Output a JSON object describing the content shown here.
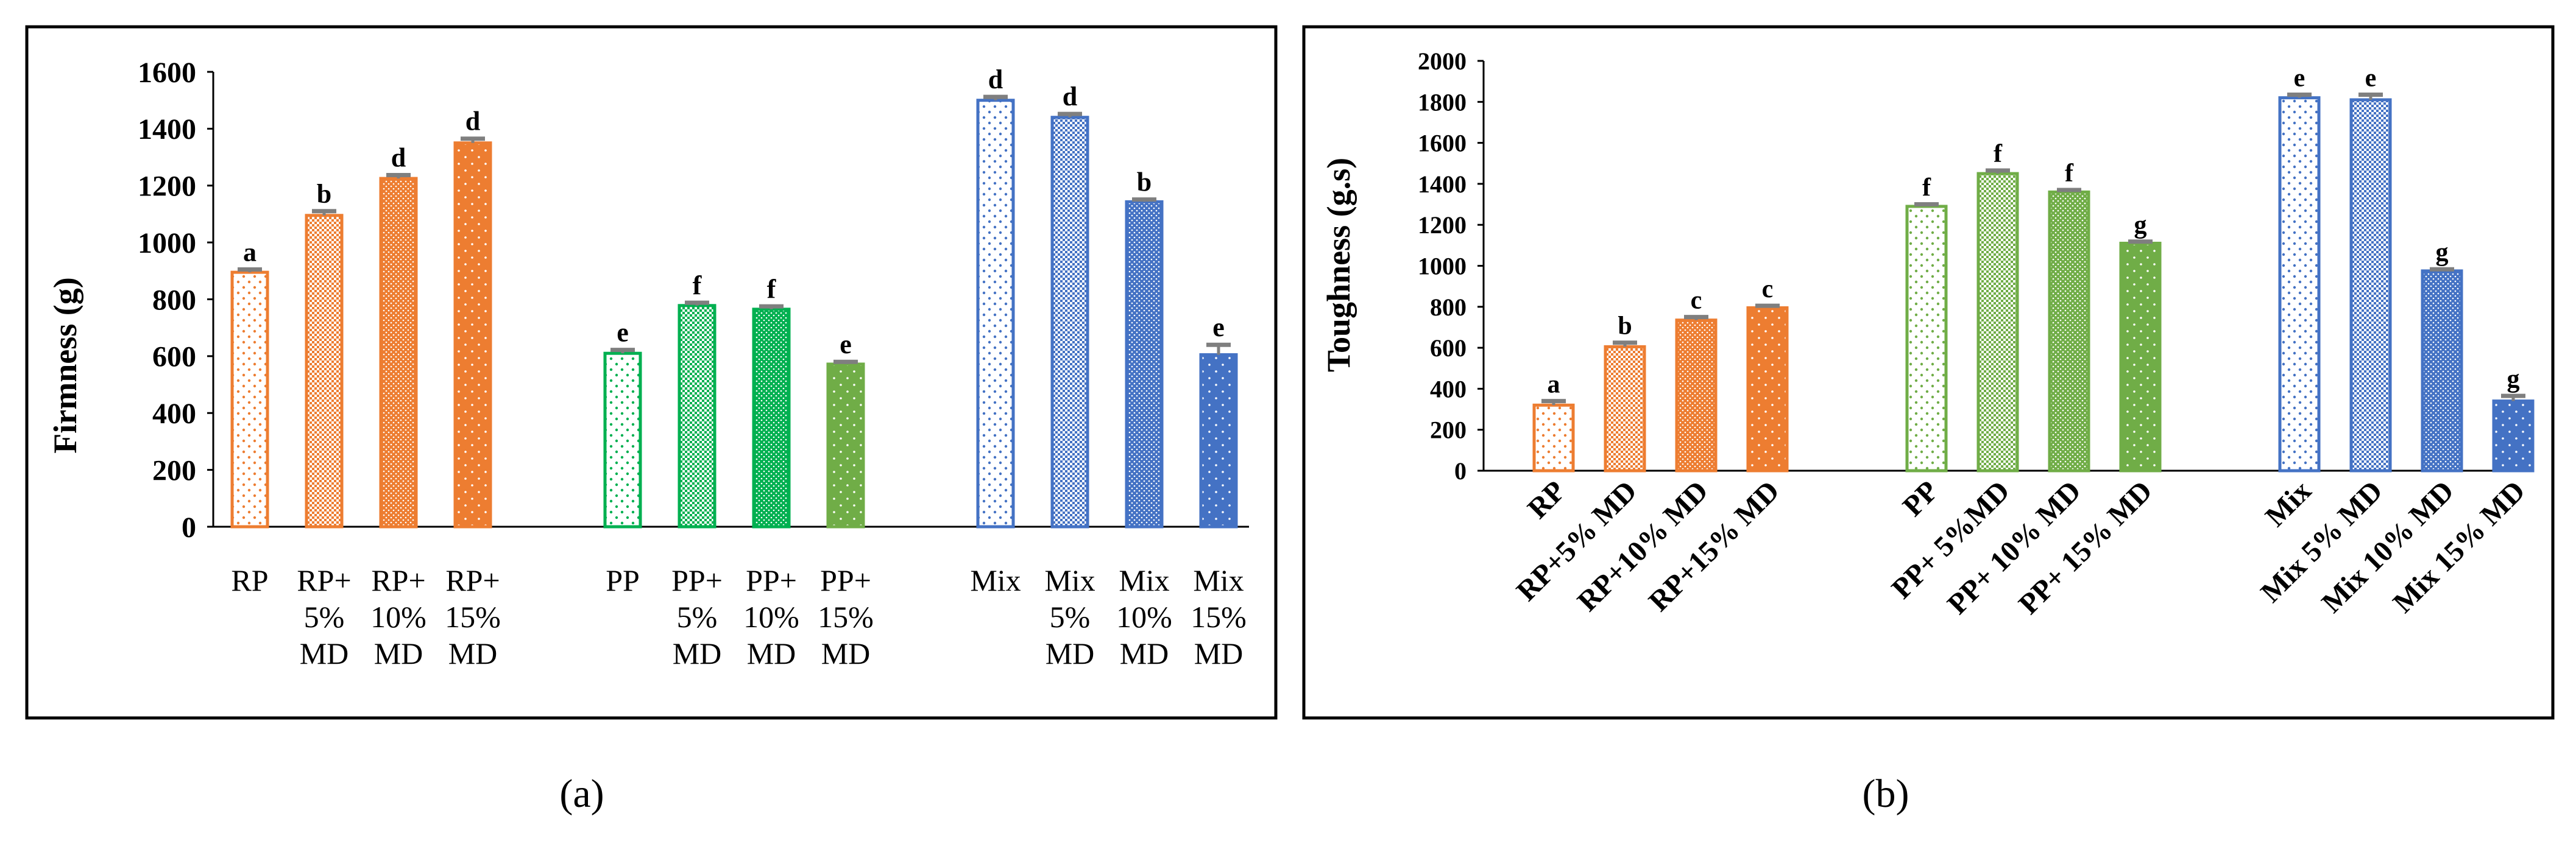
{
  "chart_data": [
    {
      "type": "bar",
      "panel_label": "(a)",
      "ylabel": "Firmness (g)",
      "ylim": [
        0,
        1600
      ],
      "yticks": [
        0,
        200,
        400,
        600,
        800,
        1000,
        1200,
        1400,
        1600
      ],
      "grid": false,
      "legend": "none",
      "groups": [
        {
          "bars": [
            {
              "label": [
                "RP"
              ],
              "value": 895,
              "error": 10,
              "letter": "a",
              "color": "#ED7D31",
              "fill": "sparse-dots"
            },
            {
              "label": [
                "RP+",
                "5%",
                "MD"
              ],
              "value": 1095,
              "error": 15,
              "letter": "b",
              "color": "#ED7D31",
              "fill": "checker"
            },
            {
              "label": [
                "RP+",
                "10%",
                "MD"
              ],
              "value": 1225,
              "error": 12,
              "letter": "d",
              "color": "#ED7D31",
              "fill": "dense-dots"
            },
            {
              "label": [
                "RP+",
                "15%",
                "MD"
              ],
              "value": 1350,
              "error": 15,
              "letter": "d",
              "color": "#ED7D31",
              "fill": "solid-dots"
            }
          ]
        },
        {
          "bars": [
            {
              "label": [
                "PP"
              ],
              "value": 610,
              "error": 12,
              "letter": "e",
              "color": "#00B050",
              "fill": "sparse-dots"
            },
            {
              "label": [
                "PP+",
                "5%",
                "MD"
              ],
              "value": 778,
              "error": 10,
              "letter": "f",
              "color": "#00B050",
              "fill": "checker"
            },
            {
              "label": [
                "PP+",
                "10%",
                "MD"
              ],
              "value": 765,
              "error": 10,
              "letter": "f",
              "color": "#00B050",
              "fill": "dense-dots"
            },
            {
              "label": [
                "PP+",
                "15%",
                "MD"
              ],
              "value": 572,
              "error": 8,
              "letter": "e",
              "color": "#70AD47",
              "fill": "solid-dots"
            }
          ]
        },
        {
          "bars": [
            {
              "label": [
                "Mix"
              ],
              "value": 1500,
              "error": 12,
              "letter": "d",
              "color": "#4472C4",
              "fill": "sparse-dots"
            },
            {
              "label": [
                "Mix",
                "5%",
                "MD"
              ],
              "value": 1440,
              "error": 12,
              "letter": "d",
              "color": "#4472C4",
              "fill": "checker"
            },
            {
              "label": [
                "Mix",
                "10%",
                "MD"
              ],
              "value": 1143,
              "error": 8,
              "letter": "b",
              "color": "#4472C4",
              "fill": "dense-dots"
            },
            {
              "label": [
                "Mix",
                "15%",
                "MD"
              ],
              "value": 605,
              "error": 35,
              "letter": "e",
              "color": "#4472C4",
              "fill": "solid-dots"
            }
          ]
        }
      ]
    },
    {
      "type": "bar",
      "panel_label": "(b)",
      "ylabel": "Toughness (g.s)",
      "ylim": [
        0,
        2000
      ],
      "yticks": [
        0,
        200,
        400,
        600,
        800,
        1000,
        1200,
        1400,
        1600,
        1800,
        2000
      ],
      "grid": false,
      "legend": "none",
      "groups": [
        {
          "bars": [
            {
              "label": "RP",
              "value": 320,
              "error": 20,
              "letter": "a",
              "color": "#ED7D31",
              "fill": "sparse-dots"
            },
            {
              "label": "RP+5% MD",
              "value": 605,
              "error": 20,
              "letter": "b",
              "color": "#ED7D31",
              "fill": "checker"
            },
            {
              "label": "RP+10% MD",
              "value": 735,
              "error": 15,
              "letter": "c",
              "color": "#ED7D31",
              "fill": "dense-dots"
            },
            {
              "label": "RP+15% MD",
              "value": 795,
              "error": 10,
              "letter": "c",
              "color": "#ED7D31",
              "fill": "solid-dots"
            }
          ]
        },
        {
          "bars": [
            {
              "label": "PP",
              "value": 1290,
              "error": 10,
              "letter": "f",
              "color": "#70AD47",
              "fill": "sparse-dots"
            },
            {
              "label": "PP+ 5%MD",
              "value": 1450,
              "error": 15,
              "letter": "f",
              "color": "#70AD47",
              "fill": "checker"
            },
            {
              "label": "PP+ 10% MD",
              "value": 1360,
              "error": 10,
              "letter": "f",
              "color": "#70AD47",
              "fill": "dense-dots"
            },
            {
              "label": "PP+ 15% MD",
              "value": 1110,
              "error": 8,
              "letter": "g",
              "color": "#70AD47",
              "fill": "solid-dots"
            }
          ]
        },
        {
          "bars": [
            {
              "label": "Mix",
              "value": 1820,
              "error": 15,
              "letter": "e",
              "color": "#4472C4",
              "fill": "sparse-dots"
            },
            {
              "label": "Mix 5% MD",
              "value": 1810,
              "error": 25,
              "letter": "e",
              "color": "#4472C4",
              "fill": "checker"
            },
            {
              "label": "Mix 10% MD",
              "value": 975,
              "error": 8,
              "letter": "g",
              "color": "#4472C4",
              "fill": "dense-dots"
            },
            {
              "label": "Mix 15% MD",
              "value": 340,
              "error": 25,
              "letter": "g",
              "color": "#4472C4",
              "fill": "solid-dots"
            }
          ]
        }
      ]
    }
  ],
  "colors": {
    "error_bar": "#7F7F7F",
    "frame": "#000000"
  }
}
